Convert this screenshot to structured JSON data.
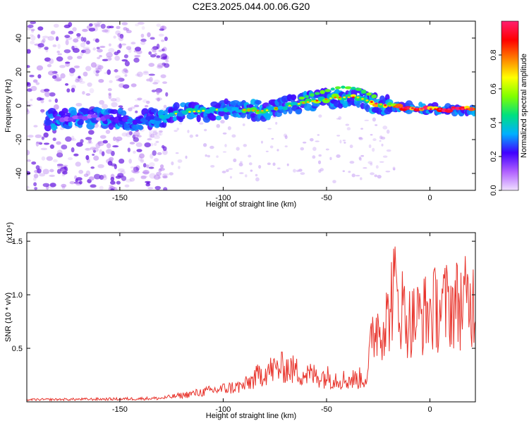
{
  "title": "C2E3.2025.044.00.06.G20",
  "colors": {
    "snr_line": "#e8342c",
    "spectrogram_purple": "#8a2be2",
    "colorbar_stops": [
      "#f0e0ff",
      "#b060ff",
      "#4000ff",
      "#00b0ff",
      "#00e080",
      "#80ff00",
      "#ffff00",
      "#ff8000",
      "#ff0000",
      "#ff2070"
    ]
  },
  "chart_data": [
    {
      "type": "heatmap",
      "title": "C2E3.2025.044.00.06.G20",
      "xlabel": "Height of straight line (km)",
      "ylabel": "Frequency (Hz)",
      "xlim": [
        -195,
        22
      ],
      "ylim": [
        -50,
        50
      ],
      "xticks": [
        -150,
        -100,
        -50,
        0
      ],
      "yticks": [
        -40,
        -20,
        0,
        20,
        40
      ],
      "xtick_labels": [
        "-150",
        "-100",
        "-50",
        "0"
      ],
      "ytick_labels": [
        "-40",
        "-20",
        "0",
        "20",
        "40"
      ],
      "colorbar": {
        "label": "Normalized spectral amplitude",
        "range": [
          0,
          1
        ],
        "ticks": [
          0,
          0.2,
          0.4,
          0.6,
          0.8
        ],
        "tick_labels": [
          "0.0",
          "0.2",
          "0.4",
          "0.6",
          "0.8"
        ]
      },
      "ridge": {
        "x": [
          -180,
          -160,
          -140,
          -120,
          -100,
          -80,
          -60,
          -45,
          -35,
          -25,
          -15,
          0,
          20
        ],
        "freq": [
          -8,
          -7,
          -9,
          -4,
          -2,
          -3,
          2,
          5,
          5,
          1,
          -1,
          -2,
          -2
        ],
        "amplitude": [
          0.15,
          0.12,
          0.3,
          0.35,
          0.4,
          0.45,
          0.5,
          0.55,
          0.6,
          0.65,
          0.75,
          0.9,
          1.0
        ]
      }
    },
    {
      "type": "line",
      "xlabel": "Height of straight line (km)",
      "ylabel": "SNR (10 * v/v)",
      "y_multiplier_label": "(x10⁴)",
      "xlim": [
        -195,
        22
      ],
      "ylim": [
        0,
        15800
      ],
      "xticks": [
        -150,
        -100,
        -50,
        0
      ],
      "yticks": [
        5000,
        10000,
        15000
      ],
      "xtick_labels": [
        "-150",
        "-100",
        "-50",
        "0"
      ],
      "ytick_labels": [
        "0.5",
        "1.0",
        "1.5"
      ],
      "envelope": {
        "x": [
          -195,
          -150,
          -130,
          -120,
          -100,
          -90,
          -80,
          -70,
          -60,
          -50,
          -40,
          -30,
          -28,
          -20,
          -18,
          -10,
          0,
          10,
          20
        ],
        "y": [
          300,
          400,
          500,
          900,
          1800,
          2200,
          4200,
          4800,
          3800,
          3500,
          3000,
          3400,
          10000,
          11500,
          15800,
          11000,
          12500,
          13500,
          13800
        ]
      }
    }
  ]
}
